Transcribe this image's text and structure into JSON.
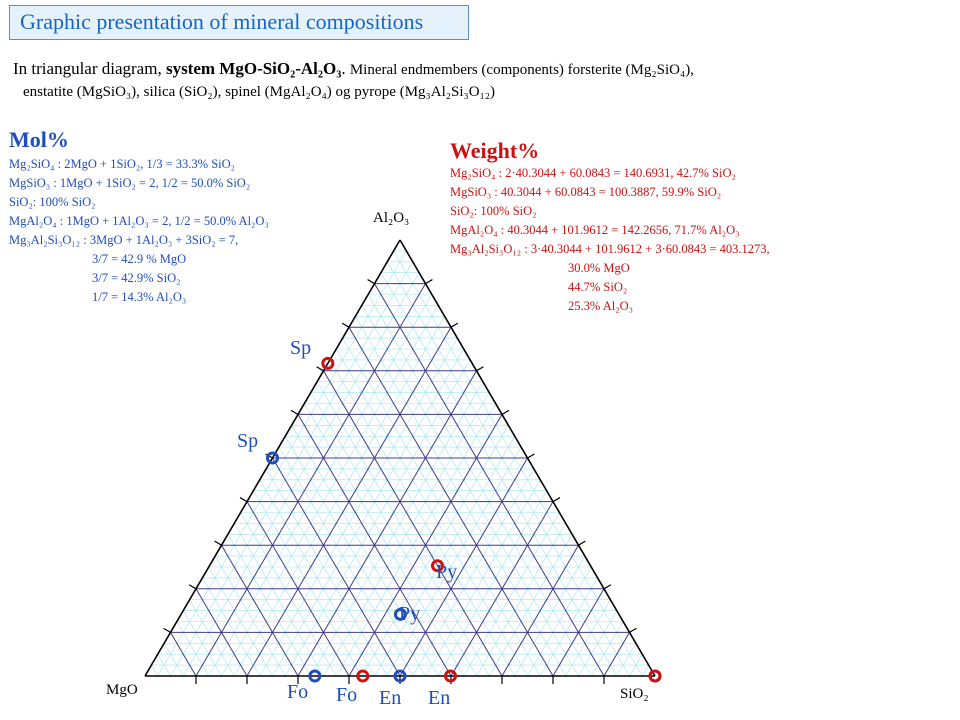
{
  "title": "Graphic presentation of mineral compositions",
  "intro": {
    "line1_prefix": "In triangular diagram, ",
    "line1_system": "system MgO-SiO₂-Al₂O₃",
    "line1_sep": ".  ",
    "line1_rest": "Mineral endmembers (components) forsterite (Mg₂SiO₄),",
    "line2": "enstatite (MgSiO₃), silica (SiO₂), spinel (MgAl₂O₄) og pyrope (Mg₃Al₂Si₃O₁₂)"
  },
  "mol": {
    "heading": "Mol%",
    "lines": [
      "Mg₂SiO₄ : 2MgO + 1SiO₂,   1/3 = 33.3% SiO₂",
      "MgSiO₃ : 1MgO + 1SiO₂ = 2,  1/2 = 50.0% SiO₂",
      "SiO₂: 100% SiO₂",
      "MgAl₂O₄ : 1MgO + 1Al₂O₃ = 2,  1/2 = 50.0% Al₂O₃",
      "Mg₃Al₂Si₃O₁₂ : 3MgO + 1Al₂O₃ + 3SiO₂ = 7,",
      "3/7 = 42.9 % MgO",
      "3/7 = 42.9% SiO₂",
      "1/7 = 14.3% Al₂O₃"
    ]
  },
  "weight": {
    "heading": "Weight%",
    "lines": [
      "Mg₂SiO₄ : 2·40.3044 + 60.0843 = 140.6931,   42.7% SiO₂",
      "MgSiO₃ : 40.3044 + 60.0843 = 100.3887,   59.9% SiO₂",
      "SiO₂: 100% SiO₂",
      "MgAl₂O₄ : 40.3044 + 101.9612 = 142.2656,  71.7% Al₂O₃",
      "Mg₃Al₂Si₃O₁₂ : 3·40.3044 + 101.9612 + 3·60.0843 = 403.1273,",
      "30.0% MgO",
      "44.7% SiO₂",
      "25.3% Al₂O₃"
    ]
  },
  "vertices": {
    "top": "Al₂O₃",
    "left": "MgO",
    "right": "SiO₂"
  },
  "colors": {
    "mol": "#1f4dbb",
    "weight": "#cc1111",
    "grid_major": "#3c3c8c",
    "grid_minor": "#9fe3ee"
  },
  "points": [
    {
      "label": "Sp",
      "system": "weight",
      "MgO": 28.3,
      "SiO2": 0,
      "Al2O3": 71.7
    },
    {
      "label": "Sp",
      "system": "mol",
      "MgO": 50,
      "SiO2": 0,
      "Al2O3": 50
    },
    {
      "label": "Py",
      "system": "weight",
      "MgO": 30.0,
      "SiO2": 44.7,
      "Al2O3": 25.3
    },
    {
      "label": "Py",
      "system": "mol",
      "MgO": 42.9,
      "SiO2": 42.9,
      "Al2O3": 14.3
    },
    {
      "label": "Fo",
      "system": "mol",
      "MgO": 66.7,
      "SiO2": 33.3,
      "Al2O3": 0
    },
    {
      "label": "Fo",
      "system": "weight",
      "MgO": 57.3,
      "SiO2": 42.7,
      "Al2O3": 0
    },
    {
      "label": "En",
      "system": "mol",
      "MgO": 50,
      "SiO2": 50,
      "Al2O3": 0
    },
    {
      "label": "En",
      "system": "weight",
      "MgO": 40.1,
      "SiO2": 59.9,
      "Al2O3": 0
    },
    {
      "label": "",
      "system": "mol",
      "MgO": 0,
      "SiO2": 100,
      "Al2O3": 0
    },
    {
      "label": "",
      "system": "weight",
      "MgO": 0,
      "SiO2": 100,
      "Al2O3": 0
    }
  ]
}
